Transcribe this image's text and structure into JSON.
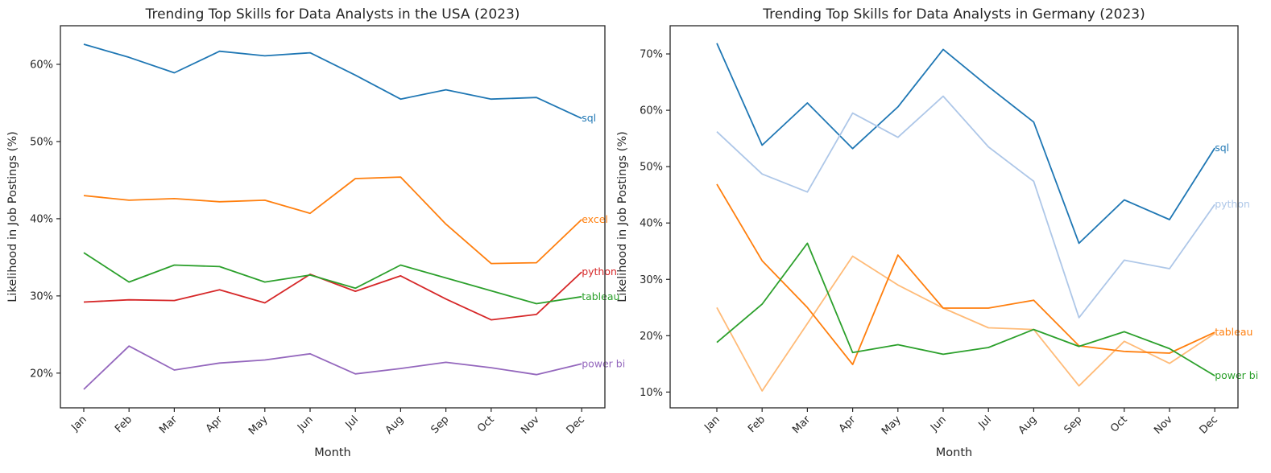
{
  "chart_data": [
    {
      "type": "line",
      "title": "Trending Top Skills for Data Analysts in the USA (2023)",
      "xlabel": "Month",
      "ylabel": "Likelihood in Job Postings (%)",
      "categories": [
        "Jan",
        "Feb",
        "Mar",
        "Apr",
        "May",
        "Jun",
        "Jul",
        "Aug",
        "Sep",
        "Oct",
        "Nov",
        "Dec"
      ],
      "ylim": [
        15.5,
        65
      ],
      "yticks": [
        20,
        30,
        40,
        50,
        60
      ],
      "ytick_labels": [
        "20%",
        "30%",
        "40%",
        "50%",
        "60%"
      ],
      "grid": false,
      "legend": "line-end labels",
      "series": [
        {
          "name": "sql",
          "color": "#1f77b4",
          "values": [
            62.6,
            60.9,
            58.9,
            61.7,
            61.1,
            61.5,
            58.6,
            55.5,
            56.7,
            55.5,
            55.7,
            53.0
          ]
        },
        {
          "name": "excel",
          "color": "#ff7f0e",
          "values": [
            43.0,
            42.4,
            42.6,
            42.2,
            42.4,
            40.7,
            45.2,
            45.4,
            39.3,
            34.2,
            34.3,
            39.9
          ]
        },
        {
          "name": "python",
          "color": "#d62728",
          "values": [
            29.2,
            29.5,
            29.4,
            30.8,
            29.1,
            32.8,
            30.6,
            32.6,
            29.6,
            26.9,
            27.6,
            33.1
          ]
        },
        {
          "name": "tableau",
          "color": "#2ca02c",
          "values": [
            35.6,
            31.8,
            34.0,
            33.8,
            31.8,
            32.7,
            31.0,
            34.0,
            null,
            null,
            29.0,
            29.9
          ]
        },
        {
          "name": "power bi",
          "color": "#9467bd",
          "values": [
            17.9,
            23.5,
            20.4,
            21.3,
            21.7,
            22.5,
            19.9,
            20.6,
            21.4,
            20.7,
            19.8,
            21.2
          ]
        }
      ]
    },
    {
      "type": "line",
      "title": "Trending Top Skills for Data Analysts in Germany (2023)",
      "xlabel": "Month",
      "ylabel": "Likelihood in Job Postings (%)",
      "categories": [
        "Jan",
        "Feb",
        "Mar",
        "Apr",
        "May",
        "Jun",
        "Jul",
        "Aug",
        "Sep",
        "Oct",
        "Nov",
        "Dec"
      ],
      "ylim": [
        7.2,
        75
      ],
      "yticks": [
        10,
        20,
        30,
        40,
        50,
        60,
        70
      ],
      "ytick_labels": [
        "10%",
        "20%",
        "30%",
        "40%",
        "50%",
        "60%",
        "70%"
      ],
      "grid": false,
      "legend": "line-end labels",
      "series": [
        {
          "name": "sql",
          "color": "#1f77b4",
          "values": [
            71.9,
            53.8,
            61.3,
            53.2,
            60.6,
            70.8,
            64.2,
            57.9,
            36.4,
            44.1,
            40.6,
            53.3
          ]
        },
        {
          "name": "python",
          "color": "#aec7e8",
          "values": [
            56.2,
            48.7,
            45.5,
            59.5,
            55.2,
            62.5,
            53.5,
            47.4,
            23.2,
            33.4,
            31.9,
            43.3
          ]
        },
        {
          "name": "",
          "color": "#ffbb78",
          "values": [
            25.0,
            10.2,
            null,
            34.1,
            29.0,
            24.9,
            21.4,
            21.1,
            11.1,
            19.0,
            15.1,
            20.4
          ]
        },
        {
          "name": "tableau",
          "color": "#ff7f0e",
          "values": [
            46.9,
            33.3,
            25.0,
            14.9,
            34.3,
            24.9,
            24.9,
            26.3,
            18.2,
            17.2,
            16.9,
            20.6
          ]
        },
        {
          "name": "power bi",
          "color": "#2ca02c",
          "values": [
            18.8,
            25.6,
            36.4,
            17.0,
            18.4,
            16.7,
            17.9,
            21.1,
            18.1,
            20.7,
            17.7,
            12.9
          ]
        }
      ]
    }
  ]
}
